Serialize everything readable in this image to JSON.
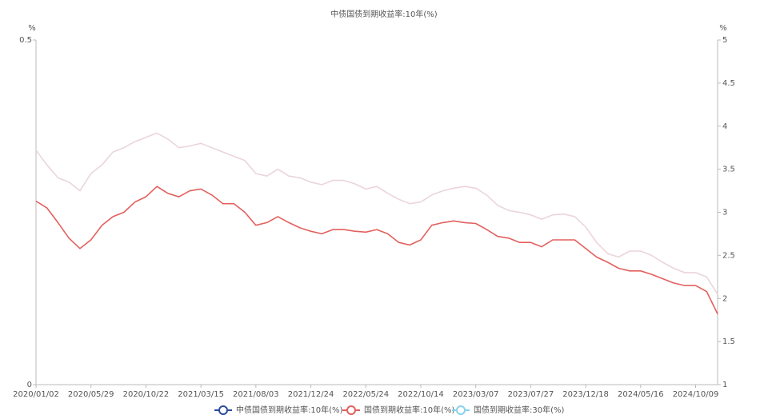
{
  "chart_data": {
    "type": "line",
    "title": "中债国债到期收益率:10年(%)",
    "y_unit": "%",
    "y2_unit": "%",
    "categories": [
      "2020/01/02",
      null,
      null,
      null,
      null,
      "2020/05/29",
      null,
      null,
      null,
      null,
      "2020/10/22",
      null,
      null,
      null,
      null,
      "2021/03/15",
      null,
      null,
      null,
      null,
      "2021/08/03",
      null,
      null,
      null,
      null,
      "2021/12/24",
      null,
      null,
      null,
      null,
      "2022/05/24",
      null,
      null,
      null,
      null,
      "2022/10/14",
      null,
      null,
      null,
      null,
      "2023/03/07",
      null,
      null,
      null,
      null,
      "2023/07/27",
      null,
      null,
      null,
      null,
      "2023/12/18",
      null,
      null,
      null,
      null,
      "2024/05/16",
      null,
      null,
      null,
      null,
      "2024/10/09",
      null,
      null
    ],
    "ylim": [
      0,
      0.5
    ],
    "yticks": [
      0,
      0.5
    ],
    "y2lim": [
      1,
      5
    ],
    "y2ticks": [
      1,
      1.5,
      2,
      2.5,
      3,
      3.5,
      4,
      4.5,
      5
    ],
    "series": [
      {
        "name": "中债国债到期收益率:10年(%)",
        "color": "#2b4c9b",
        "axis": "y",
        "values": [
          null,
          null,
          null,
          null,
          null,
          null,
          null,
          null,
          null,
          null,
          null,
          null,
          null,
          null,
          null,
          null,
          null,
          null,
          null,
          null,
          null,
          null,
          null,
          null,
          null,
          null,
          null,
          null,
          null,
          null,
          null,
          null,
          null,
          null,
          null,
          null,
          null,
          null,
          null,
          null,
          null,
          null,
          null,
          null,
          null,
          null,
          null,
          null,
          null,
          null,
          null,
          null,
          null,
          null,
          null,
          null,
          null,
          null,
          null,
          null,
          null,
          null,
          null
        ]
      },
      {
        "name": "国债到期收益率:10年(%)",
        "color": "#e3605e",
        "axis": "y2",
        "values": [
          3.13,
          3.05,
          2.88,
          2.7,
          2.58,
          2.68,
          2.85,
          2.95,
          3.0,
          3.12,
          3.18,
          3.3,
          3.22,
          3.18,
          3.25,
          3.27,
          3.2,
          3.1,
          3.1,
          3.0,
          2.85,
          2.88,
          2.95,
          2.88,
          2.82,
          2.78,
          2.75,
          2.8,
          2.8,
          2.78,
          2.77,
          2.8,
          2.75,
          2.65,
          2.62,
          2.68,
          2.85,
          2.88,
          2.9,
          2.88,
          2.87,
          2.8,
          2.72,
          2.7,
          2.65,
          2.65,
          2.6,
          2.68,
          2.68,
          2.68,
          2.58,
          2.48,
          2.42,
          2.35,
          2.32,
          2.32,
          2.28,
          2.23,
          2.18,
          2.15,
          2.15,
          2.08,
          1.82
        ]
      },
      {
        "name": "国债到期收益率:30年(%)",
        "color": "#86d3ef",
        "line_color": "#ebd5d9",
        "axis": "y2",
        "values": [
          3.72,
          3.55,
          3.4,
          3.35,
          3.25,
          3.45,
          3.55,
          3.7,
          3.75,
          3.82,
          3.87,
          3.92,
          3.85,
          3.75,
          3.77,
          3.8,
          3.75,
          3.7,
          3.65,
          3.6,
          3.45,
          3.42,
          3.5,
          3.42,
          3.4,
          3.35,
          3.32,
          3.37,
          3.37,
          3.33,
          3.27,
          3.3,
          3.22,
          3.15,
          3.1,
          3.12,
          3.2,
          3.25,
          3.28,
          3.3,
          3.28,
          3.2,
          3.08,
          3.02,
          3.0,
          2.97,
          2.92,
          2.97,
          2.98,
          2.95,
          2.83,
          2.65,
          2.52,
          2.48,
          2.55,
          2.55,
          2.5,
          2.42,
          2.35,
          2.3,
          2.3,
          2.25,
          2.05
        ]
      }
    ]
  }
}
